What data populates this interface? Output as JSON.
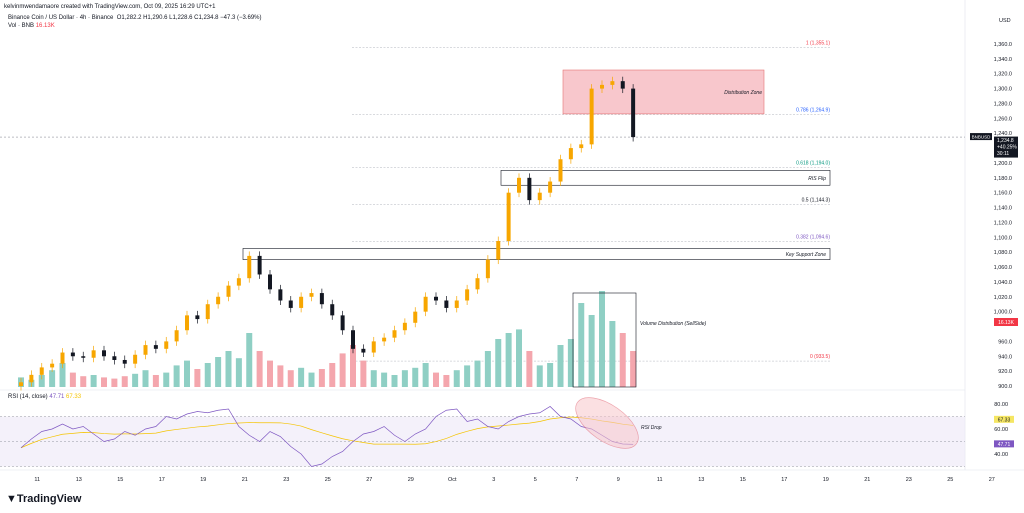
{
  "header": {
    "credit": "kelvinmwendamaore created with TradingView.com, Oct 09, 2025 16:29 UTC+1",
    "symbol_line": "Binance Coin / US Dollar · 4h · Binance",
    "ohlc": "O1,282.2  H1,290.6  L1,228.6  C1,234.8  −47.3 (−3.69%)",
    "vol_label": "Vol · BNB",
    "vol_value": "16.13K"
  },
  "brand": "TradingView",
  "price_axis": {
    "currency": "USD",
    "ticks": [
      "1,360.0",
      "1,340.0",
      "1,320.0",
      "1,300.0",
      "1,280.0",
      "1,260.0",
      "1,240.0",
      "1,200.0",
      "1,180.0",
      "1,160.0",
      "1,140.0",
      "1,120.0",
      "1,100.0",
      "1,080.0",
      "1,060.0",
      "1,040.0",
      "1,020.0",
      "1,000.0",
      "960.0",
      "940.0",
      "920.0",
      "900.0"
    ],
    "tick_values": [
      1360,
      1340,
      1320,
      1300,
      1280,
      1260,
      1240,
      1200,
      1180,
      1160,
      1140,
      1120,
      1100,
      1080,
      1060,
      1040,
      1020,
      1000,
      960,
      940,
      920,
      900
    ],
    "symbol_tag": "BNBUSD",
    "last_price": "1,234.8",
    "last_change": "+40.25%",
    "countdown": "30:11",
    "vol_tag": "16.13K"
  },
  "rsi": {
    "label": "RSI (14, close)",
    "value": "47.71",
    "ma": "67.33",
    "ticks": [
      "80.00",
      "60.00",
      "40.00"
    ],
    "tick_values": [
      80,
      60,
      40
    ],
    "bands": [
      70,
      30
    ],
    "values": [
      45,
      52,
      58,
      60,
      64,
      60,
      62,
      56,
      50,
      52,
      58,
      55,
      60,
      62,
      70,
      68,
      72,
      74,
      73,
      75,
      76,
      62,
      55,
      50,
      58,
      54,
      46,
      40,
      30,
      32,
      38,
      42,
      50,
      56,
      58,
      62,
      55,
      50,
      56,
      60,
      70,
      75,
      76,
      66,
      68,
      62,
      60,
      66,
      70,
      72,
      73,
      78,
      70,
      68,
      62,
      60,
      55,
      50,
      48,
      47.71
    ]
  },
  "time_axis": [
    "11",
    "13",
    "15",
    "17",
    "19",
    "21",
    "23",
    "25",
    "27",
    "29",
    "Oct",
    "3",
    "5",
    "7",
    "9",
    "11",
    "13",
    "15",
    "17",
    "19",
    "21",
    "23",
    "25",
    "27"
  ],
  "chart_data": {
    "type": "candlestick",
    "interval_displayed": "12h",
    "start": "2025-09-10",
    "close": [
      905,
      915,
      925,
      930,
      945,
      940,
      938,
      948,
      940,
      935,
      930,
      942,
      955,
      950,
      960,
      975,
      995,
      990,
      1010,
      1020,
      1035,
      1045,
      1075,
      1050,
      1030,
      1015,
      1005,
      1020,
      1025,
      1010,
      995,
      975,
      950,
      945,
      960,
      965,
      975,
      985,
      1000,
      1020,
      1015,
      1005,
      1015,
      1030,
      1045,
      1070,
      1095,
      1160,
      1180,
      1150,
      1160,
      1175,
      1205,
      1220,
      1225,
      1300,
      1305,
      1310,
      1300,
      1234.8
    ],
    "volume_k": [
      8,
      6,
      10,
      14,
      20,
      12,
      9,
      10,
      8,
      7,
      9,
      11,
      14,
      10,
      12,
      18,
      22,
      15,
      20,
      25,
      30,
      24,
      45,
      30,
      22,
      18,
      14,
      16,
      12,
      15,
      20,
      28,
      35,
      22,
      14,
      12,
      10,
      14,
      16,
      20,
      12,
      10,
      14,
      18,
      22,
      30,
      40,
      45,
      48,
      30,
      18,
      20,
      35,
      40,
      70,
      60,
      80,
      55,
      45,
      30
    ],
    "ylim": [
      900,
      1370
    ],
    "colors": {
      "up": "#f7a600",
      "down": "#131722",
      "vol_up": "#8fcfc4",
      "vol_down": "#f4a6ad",
      "rsi": "#7e57c2",
      "rsi_ma": "#f5c400"
    },
    "fib_levels": [
      {
        "label": "1 (1,355.1)",
        "price": 1355.1,
        "color": "#f23645"
      },
      {
        "label": "0.786 (1,264.9)",
        "price": 1264.9,
        "color": "#2962ff"
      },
      {
        "label": "0.618 (1,194.0)",
        "price": 1194.0,
        "color": "#089981"
      },
      {
        "label": "0.5 (1,144.3)",
        "price": 1144.3,
        "color": "#131722"
      },
      {
        "label": "0.382 (1,094.6)",
        "price": 1094.6,
        "color": "#7e57c2"
      },
      {
        "label": "0 (933.5)",
        "price": 933.5,
        "color": "#f23645"
      }
    ],
    "annotations": [
      {
        "label": "Distribution Zone",
        "top": 1325,
        "bottom": 1266,
        "fill": "#f8c7cc"
      },
      {
        "label": "RIS Flip",
        "top": 1190,
        "bottom": 1170,
        "fill": "none"
      },
      {
        "label": "Key Support Zone",
        "top": 1085,
        "bottom": 1070,
        "fill": "none"
      },
      {
        "label": "Volume Distribution (SellSide)"
      },
      {
        "label": "RSI Drop"
      }
    ]
  }
}
